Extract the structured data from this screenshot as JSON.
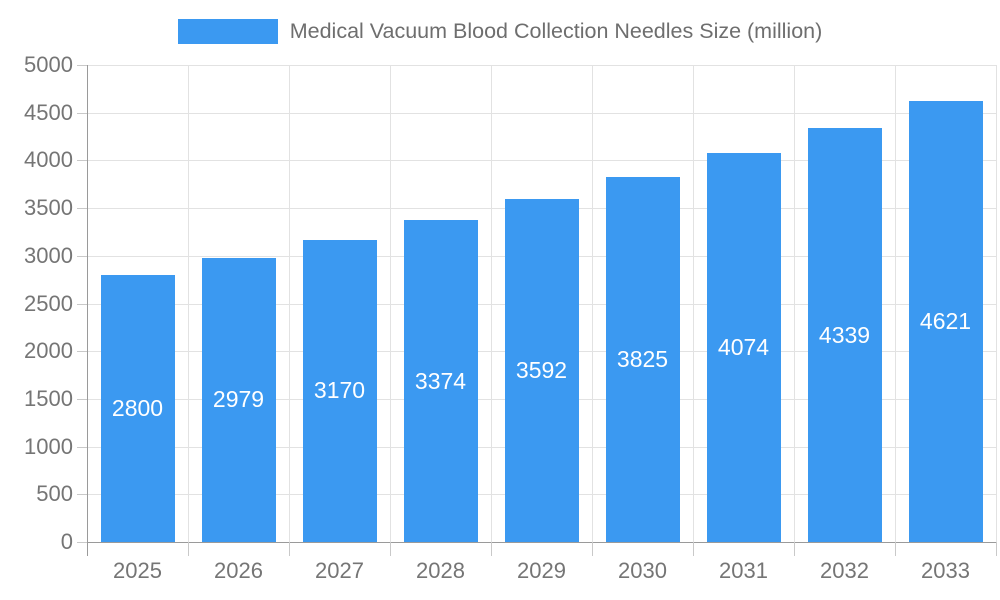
{
  "legend": {
    "label": "Medical Vacuum Blood Collection Needles Size (million)",
    "swatch_color": "#3b99f1"
  },
  "chart_data": {
    "type": "bar",
    "title": "Medical Vacuum Blood Collection Needles Size (million)",
    "categories": [
      "2025",
      "2026",
      "2027",
      "2028",
      "2029",
      "2030",
      "2031",
      "2032",
      "2033"
    ],
    "values": [
      2800,
      2979,
      3170,
      3374,
      3592,
      3825,
      4074,
      4339,
      4621
    ],
    "xlabel": "",
    "ylabel": "",
    "ylim": [
      0,
      5000
    ],
    "ytick_step": 500,
    "grid": true,
    "legend_position": "top",
    "bar_color": "#3b99f1",
    "bar_label_color": "#ffffff",
    "axis_text_color": "#757575"
  },
  "colors": {
    "bar": "#3b99f1",
    "axis_line": "#9a9a9a",
    "gridline": "#e2e2e2",
    "tick": "#c9c9c9",
    "axis_text": "#757575",
    "legend_text": "#6e6e6e",
    "background": "#ffffff"
  }
}
